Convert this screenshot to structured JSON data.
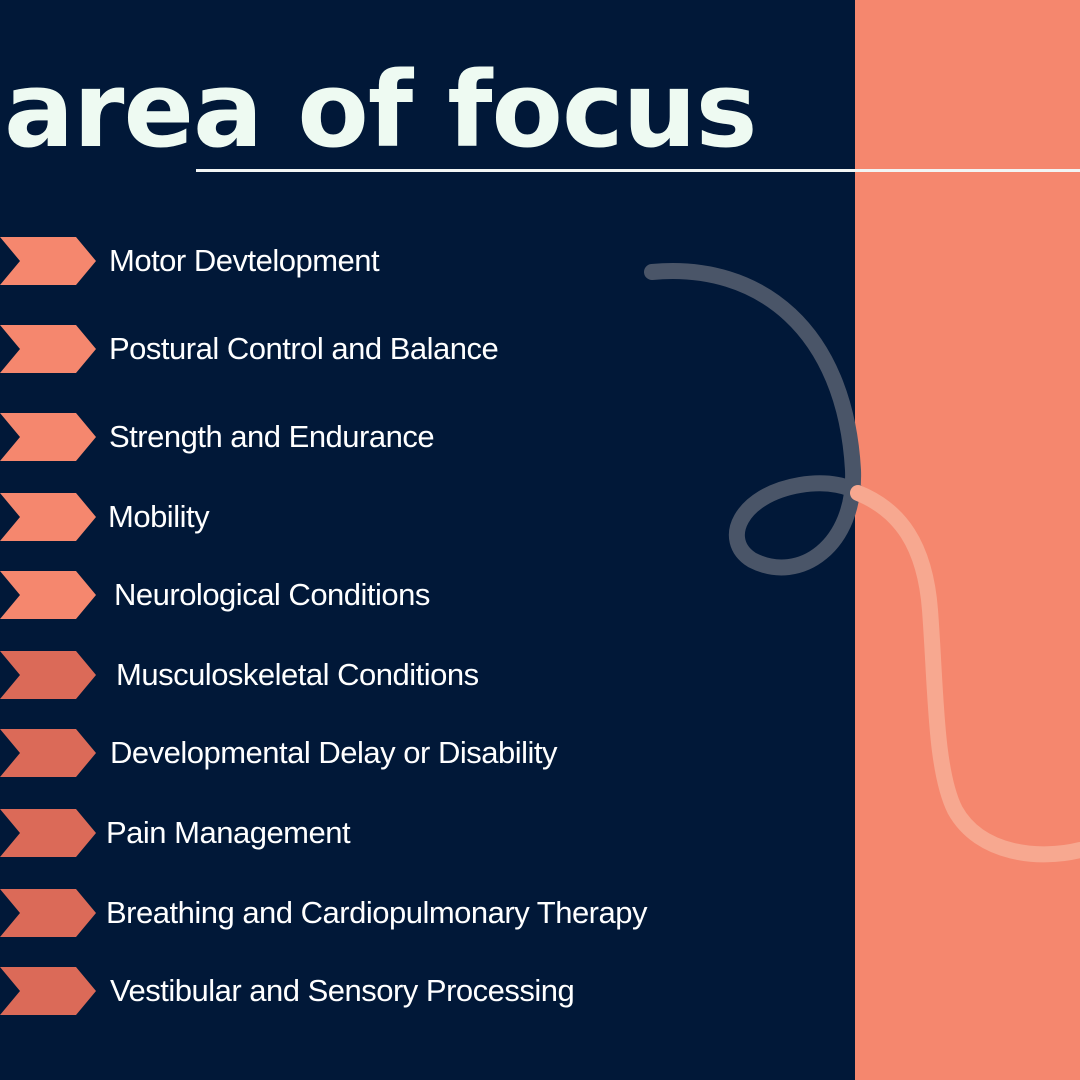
{
  "title": "area of focus",
  "colors": {
    "background": "#011838",
    "accent": "#f5876e",
    "accent_dark": "#db6a58",
    "text": "#ffffff",
    "title": "#eefaf2"
  },
  "focus_areas": [
    {
      "label": "Motor Devtelopment",
      "icon": "chevron-right-icon"
    },
    {
      "label": "Postural Control and Balance",
      "icon": "chevron-right-icon"
    },
    {
      "label": "Strength and Endurance",
      "icon": "chevron-right-icon"
    },
    {
      "label": "Mobility",
      "icon": "chevron-right-icon"
    },
    {
      "label": "Neurological Conditions",
      "icon": "chevron-right-icon"
    },
    {
      "label": "Musculoskeletal Conditions",
      "icon": "chevron-right-icon"
    },
    {
      "label": "Developmental Delay or Disability",
      "icon": "chevron-right-icon"
    },
    {
      "label": "Pain Management",
      "icon": "chevron-right-icon"
    },
    {
      "label": "Breathing and Cardiopulmonary Therapy",
      "icon": "chevron-right-icon"
    },
    {
      "label": "Vestibular and Sensory Processing",
      "icon": "chevron-right-icon"
    }
  ]
}
